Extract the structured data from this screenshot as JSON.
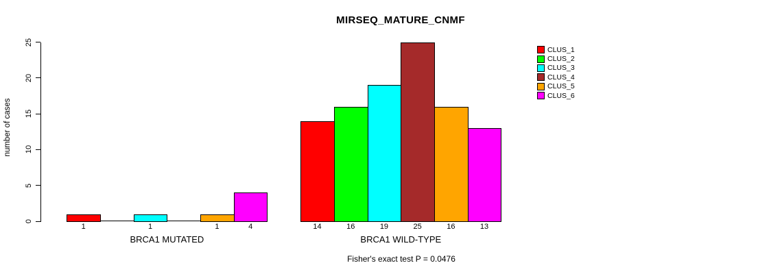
{
  "chart_data": {
    "type": "bar",
    "title": "MIRSEQ_MATURE_CNMF",
    "ylabel": "number of cases",
    "xlabel": "",
    "ylim": [
      0,
      25
    ],
    "yticks": [
      0,
      5,
      10,
      15,
      20,
      25
    ],
    "grid": false,
    "legend_position": "right",
    "legend": [
      {
        "label": "CLUS_1",
        "color": "#ff0000"
      },
      {
        "label": "CLUS_2",
        "color": "#00ff00"
      },
      {
        "label": "CLUS_3",
        "color": "#00ffff"
      },
      {
        "label": "CLUS_4",
        "color": "#a52a2a"
      },
      {
        "label": "CLUS_5",
        "color": "#ffa500"
      },
      {
        "label": "CLUS_6",
        "color": "#ff00ff"
      }
    ],
    "groups": [
      {
        "label": "BRCA1 MUTATED",
        "values": [
          1,
          0,
          1,
          0,
          1,
          4
        ]
      },
      {
        "label": "BRCA1 WILD-TYPE",
        "values": [
          14,
          16,
          19,
          25,
          16,
          13
        ]
      }
    ],
    "bar_value_labels_shown_for_nonzero_only": true,
    "annotation": "Fisher's exact test P = 0.0476"
  }
}
